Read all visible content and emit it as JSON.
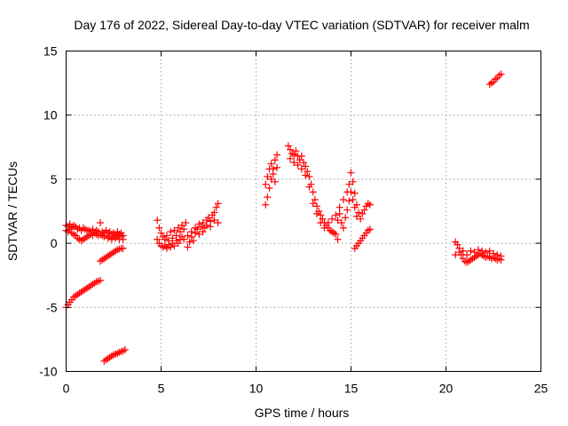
{
  "chart_data": {
    "type": "scatter",
    "title": "Day 176 of 2022, Sidereal Day-to-day VTEC variation (SDTVAR) for receiver malm",
    "xlabel": "GPS time / hours",
    "ylabel": "SDTVAR / TECUs",
    "xlim": [
      0,
      25
    ],
    "ylim": [
      -10,
      15
    ],
    "xticks": [
      0,
      5,
      10,
      15,
      20,
      25
    ],
    "yticks": [
      -10,
      -5,
      0,
      5,
      10,
      15
    ],
    "xtick_labels": [
      "0",
      "5",
      "10",
      "15",
      "20",
      "25"
    ],
    "ytick_labels": [
      "-10",
      "-5",
      "0",
      "5",
      "10",
      "15"
    ],
    "grid": true,
    "marker": "+",
    "color": "#ff0000",
    "series": [
      {
        "name": "SDTVAR",
        "points": [
          [
            0.0,
            1.4
          ],
          [
            0.1,
            1.3
          ],
          [
            0.2,
            1.5
          ],
          [
            0.3,
            1.2
          ],
          [
            0.4,
            1.4
          ],
          [
            0.5,
            1.3
          ],
          [
            0.6,
            1.1
          ],
          [
            0.7,
            1.2
          ],
          [
            0.8,
            1.0
          ],
          [
            0.9,
            1.2
          ],
          [
            1.0,
            1.1
          ],
          [
            1.1,
            1.0
          ],
          [
            1.2,
            1.0
          ],
          [
            1.3,
            0.9
          ],
          [
            1.4,
            1.1
          ],
          [
            1.5,
            0.8
          ],
          [
            1.6,
            1.0
          ],
          [
            1.7,
            0.9
          ],
          [
            1.8,
            1.6
          ],
          [
            1.9,
            0.9
          ],
          [
            2.0,
            0.8
          ],
          [
            2.1,
            1.0
          ],
          [
            2.2,
            0.8
          ],
          [
            2.3,
            0.9
          ],
          [
            2.4,
            0.7
          ],
          [
            2.5,
            0.8
          ],
          [
            2.6,
            0.6
          ],
          [
            2.7,
            0.9
          ],
          [
            2.8,
            0.7
          ],
          [
            2.9,
            0.8
          ],
          [
            3.0,
            0.6
          ],
          [
            0.0,
            1.0
          ],
          [
            0.1,
            0.9
          ],
          [
            0.2,
            1.1
          ],
          [
            0.3,
            0.8
          ],
          [
            0.4,
            0.7
          ],
          [
            0.5,
            0.6
          ],
          [
            0.6,
            0.4
          ],
          [
            0.7,
            0.3
          ],
          [
            0.8,
            0.2
          ],
          [
            0.9,
            0.3
          ],
          [
            1.0,
            0.4
          ],
          [
            1.1,
            0.5
          ],
          [
            1.2,
            0.6
          ],
          [
            1.3,
            0.7
          ],
          [
            1.4,
            0.6
          ],
          [
            1.5,
            0.8
          ],
          [
            1.6,
            0.7
          ],
          [
            1.7,
            0.6
          ],
          [
            1.8,
            0.7
          ],
          [
            1.9,
            0.6
          ],
          [
            2.0,
            0.5
          ],
          [
            2.1,
            0.6
          ],
          [
            2.2,
            0.4
          ],
          [
            2.3,
            0.5
          ],
          [
            2.4,
            0.3
          ],
          [
            2.5,
            0.5
          ],
          [
            2.6,
            0.4
          ],
          [
            2.7,
            0.6
          ],
          [
            2.8,
            0.3
          ],
          [
            2.9,
            0.5
          ],
          [
            3.0,
            0.3
          ],
          [
            0.0,
            -5.0
          ],
          [
            0.1,
            -4.8
          ],
          [
            0.2,
            -4.6
          ],
          [
            0.3,
            -4.4
          ],
          [
            0.4,
            -4.2
          ],
          [
            0.5,
            -4.1
          ],
          [
            0.6,
            -4.0
          ],
          [
            0.7,
            -3.9
          ],
          [
            0.8,
            -3.8
          ],
          [
            0.9,
            -3.7
          ],
          [
            1.0,
            -3.6
          ],
          [
            1.1,
            -3.5
          ],
          [
            1.2,
            -3.4
          ],
          [
            1.3,
            -3.3
          ],
          [
            1.4,
            -3.2
          ],
          [
            1.5,
            -3.1
          ],
          [
            1.6,
            -3.0
          ],
          [
            1.7,
            -2.95
          ],
          [
            1.8,
            -2.9
          ],
          [
            1.8,
            -1.4
          ],
          [
            1.9,
            -1.3
          ],
          [
            2.0,
            -1.2
          ],
          [
            2.1,
            -1.1
          ],
          [
            2.2,
            -1.0
          ],
          [
            2.3,
            -0.9
          ],
          [
            2.4,
            -0.8
          ],
          [
            2.5,
            -0.7
          ],
          [
            2.6,
            -0.6
          ],
          [
            2.7,
            -0.5
          ],
          [
            2.8,
            -0.45
          ],
          [
            2.9,
            -0.4
          ],
          [
            3.0,
            -0.4
          ],
          [
            2.0,
            -9.2
          ],
          [
            2.1,
            -9.1
          ],
          [
            2.2,
            -9.0
          ],
          [
            2.3,
            -8.9
          ],
          [
            2.4,
            -8.8
          ],
          [
            2.5,
            -8.7
          ],
          [
            2.6,
            -8.65
          ],
          [
            2.7,
            -8.6
          ],
          [
            2.8,
            -8.5
          ],
          [
            2.9,
            -8.45
          ],
          [
            3.0,
            -8.4
          ],
          [
            3.1,
            -8.3
          ],
          [
            4.8,
            1.8
          ],
          [
            4.9,
            1.2
          ],
          [
            5.0,
            0.8
          ],
          [
            5.1,
            0.5
          ],
          [
            5.2,
            0.3
          ],
          [
            5.3,
            0.6
          ],
          [
            5.4,
            0.2
          ],
          [
            5.5,
            0.9
          ],
          [
            5.6,
            0.4
          ],
          [
            5.7,
            1.0
          ],
          [
            5.8,
            0.6
          ],
          [
            5.9,
            1.2
          ],
          [
            6.0,
            0.9
          ],
          [
            6.1,
            1.4
          ],
          [
            6.2,
            1.1
          ],
          [
            6.3,
            1.6
          ],
          [
            4.8,
            0.3
          ],
          [
            4.9,
            0.0
          ],
          [
            5.0,
            -0.2
          ],
          [
            5.1,
            -0.3
          ],
          [
            5.2,
            -0.2
          ],
          [
            5.3,
            -0.4
          ],
          [
            5.4,
            -0.1
          ],
          [
            5.5,
            -0.3
          ],
          [
            5.6,
            0.0
          ],
          [
            5.7,
            -0.2
          ],
          [
            5.8,
            0.2
          ],
          [
            5.9,
            0.0
          ],
          [
            6.0,
            0.3
          ],
          [
            6.1,
            0.5
          ],
          [
            6.2,
            0.3
          ],
          [
            6.4,
            -0.3
          ],
          [
            6.5,
            0.1
          ],
          [
            6.6,
            0.5
          ],
          [
            6.7,
            0.2
          ],
          [
            6.8,
            0.8
          ],
          [
            6.9,
            1.1
          ],
          [
            7.0,
            0.7
          ],
          [
            7.1,
            1.3
          ],
          [
            7.2,
            1.6
          ],
          [
            7.3,
            1.2
          ],
          [
            7.4,
            1.8
          ],
          [
            7.5,
            2.0
          ],
          [
            7.6,
            1.7
          ],
          [
            7.7,
            2.2
          ],
          [
            7.8,
            2.4
          ],
          [
            7.9,
            2.8
          ],
          [
            8.0,
            3.1
          ],
          [
            6.4,
            0.6
          ],
          [
            6.6,
            0.9
          ],
          [
            6.8,
            1.2
          ],
          [
            7.0,
            1.5
          ],
          [
            7.2,
            0.9
          ],
          [
            7.4,
            1.4
          ],
          [
            7.6,
            1.3
          ],
          [
            7.8,
            1.8
          ],
          [
            8.0,
            1.6
          ],
          [
            10.5,
            3.0
          ],
          [
            10.6,
            3.6
          ],
          [
            10.7,
            4.3
          ],
          [
            10.8,
            5.0
          ],
          [
            10.9,
            5.8
          ],
          [
            11.0,
            6.5
          ],
          [
            11.1,
            6.9
          ],
          [
            10.5,
            4.6
          ],
          [
            10.6,
            5.2
          ],
          [
            10.7,
            5.8
          ],
          [
            10.8,
            6.2
          ],
          [
            10.9,
            5.4
          ],
          [
            11.0,
            4.8
          ],
          [
            11.1,
            5.9
          ],
          [
            11.7,
            7.6
          ],
          [
            11.8,
            7.3
          ],
          [
            11.9,
            7.0
          ],
          [
            12.0,
            6.9
          ],
          [
            12.1,
            7.2
          ],
          [
            12.2,
            6.8
          ],
          [
            12.3,
            6.5
          ],
          [
            12.4,
            6.8
          ],
          [
            12.5,
            6.3
          ],
          [
            12.6,
            6.0
          ],
          [
            12.7,
            5.6
          ],
          [
            12.8,
            5.2
          ],
          [
            12.9,
            4.6
          ],
          [
            13.0,
            4.0
          ],
          [
            13.1,
            3.4
          ],
          [
            13.2,
            2.9
          ],
          [
            13.3,
            2.5
          ],
          [
            13.4,
            2.2
          ],
          [
            13.5,
            1.9
          ],
          [
            13.6,
            1.6
          ],
          [
            13.7,
            1.4
          ],
          [
            13.8,
            1.2
          ],
          [
            13.9,
            1.0
          ],
          [
            14.0,
            0.9
          ],
          [
            14.1,
            0.8
          ],
          [
            14.2,
            0.7
          ],
          [
            14.3,
            0.3
          ],
          [
            11.8,
            6.6
          ],
          [
            12.0,
            6.3
          ],
          [
            12.2,
            6.1
          ],
          [
            12.4,
            5.8
          ],
          [
            12.6,
            5.3
          ],
          [
            12.8,
            4.4
          ],
          [
            13.0,
            3.1
          ],
          [
            13.2,
            2.3
          ],
          [
            13.4,
            1.6
          ],
          [
            13.6,
            1.2
          ],
          [
            13.8,
            1.6
          ],
          [
            14.0,
            1.9
          ],
          [
            14.2,
            2.2
          ],
          [
            14.4,
            2.8
          ],
          [
            14.6,
            3.4
          ],
          [
            14.8,
            4.0
          ],
          [
            14.9,
            4.6
          ],
          [
            15.0,
            5.5
          ],
          [
            15.1,
            4.8
          ],
          [
            15.2,
            3.9
          ],
          [
            15.3,
            3.0
          ],
          [
            15.4,
            2.4
          ],
          [
            15.5,
            1.9
          ],
          [
            15.6,
            2.3
          ],
          [
            15.7,
            2.6
          ],
          [
            15.8,
            2.9
          ],
          [
            15.9,
            3.1
          ],
          [
            16.0,
            3.0
          ],
          [
            14.3,
            1.8
          ],
          [
            14.4,
            2.3
          ],
          [
            14.5,
            1.6
          ],
          [
            14.6,
            1.2
          ],
          [
            14.7,
            2.0
          ],
          [
            14.8,
            2.6
          ],
          [
            14.9,
            3.3
          ],
          [
            15.0,
            4.0
          ],
          [
            15.1,
            3.4
          ],
          [
            15.2,
            2.8
          ],
          [
            15.3,
            2.1
          ],
          [
            15.2,
            -0.4
          ],
          [
            15.3,
            -0.2
          ],
          [
            15.4,
            0.0
          ],
          [
            15.5,
            0.2
          ],
          [
            15.6,
            0.4
          ],
          [
            15.7,
            0.6
          ],
          [
            15.8,
            0.8
          ],
          [
            15.9,
            1.0
          ],
          [
            16.0,
            1.1
          ],
          [
            20.5,
            0.1
          ],
          [
            20.6,
            -0.1
          ],
          [
            20.7,
            -0.4
          ],
          [
            20.8,
            -0.9
          ],
          [
            20.9,
            -1.2
          ],
          [
            21.0,
            -1.4
          ],
          [
            21.1,
            -1.5
          ],
          [
            21.2,
            -1.4
          ],
          [
            21.3,
            -1.3
          ],
          [
            21.4,
            -1.2
          ],
          [
            21.5,
            -1.1
          ],
          [
            21.6,
            -1.0
          ],
          [
            21.7,
            -0.9
          ],
          [
            21.8,
            -0.8
          ],
          [
            21.9,
            -0.9
          ],
          [
            22.0,
            -1.0
          ],
          [
            22.1,
            -1.1
          ],
          [
            22.2,
            -1.0
          ],
          [
            22.3,
            -1.1
          ],
          [
            22.4,
            -1.2
          ],
          [
            22.5,
            -1.1
          ],
          [
            22.6,
            -1.2
          ],
          [
            22.7,
            -1.3
          ],
          [
            22.8,
            -1.2
          ],
          [
            22.9,
            -1.3
          ],
          [
            20.5,
            -0.9
          ],
          [
            20.7,
            -0.7
          ],
          [
            20.9,
            -0.6
          ],
          [
            21.1,
            -0.9
          ],
          [
            21.3,
            -0.6
          ],
          [
            21.5,
            -0.7
          ],
          [
            21.7,
            -0.5
          ],
          [
            21.9,
            -0.6
          ],
          [
            22.1,
            -0.7
          ],
          [
            22.3,
            -0.6
          ],
          [
            22.5,
            -0.8
          ],
          [
            22.7,
            -0.9
          ],
          [
            22.9,
            -1.0
          ],
          [
            22.3,
            12.4
          ],
          [
            22.4,
            12.5
          ],
          [
            22.5,
            12.6
          ],
          [
            22.6,
            12.8
          ],
          [
            22.7,
            12.9
          ],
          [
            22.8,
            13.1
          ],
          [
            22.9,
            13.2
          ]
        ]
      }
    ]
  }
}
